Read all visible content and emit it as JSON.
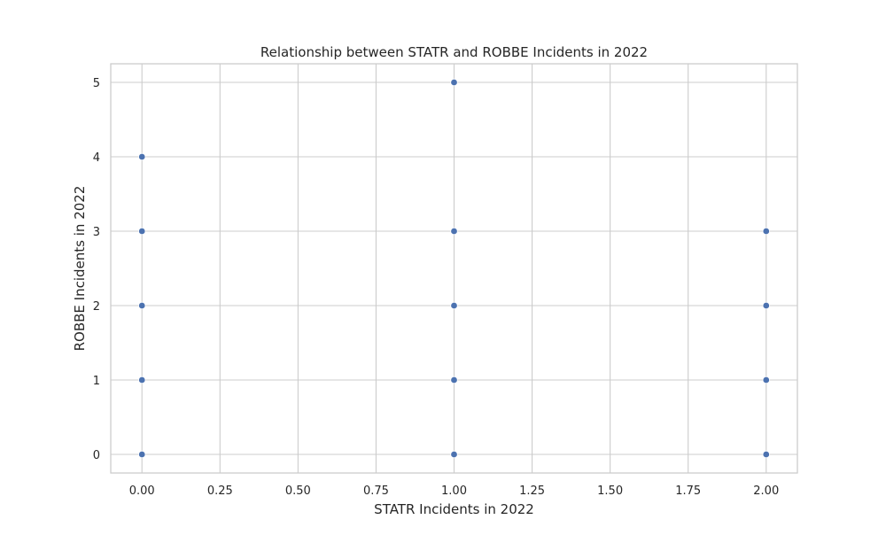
{
  "chart_data": {
    "type": "scatter",
    "title": "Relationship between STATR and ROBBE Incidents in 2022",
    "xlabel": "STATR Incidents in 2022",
    "ylabel": "ROBBE Incidents in 2022",
    "xlim": [
      -0.1,
      2.1
    ],
    "ylim": [
      -0.25,
      5.25
    ],
    "xticks": [
      0.0,
      0.25,
      0.5,
      0.75,
      1.0,
      1.25,
      1.5,
      1.75,
      2.0
    ],
    "xtick_labels": [
      "0.00",
      "0.25",
      "0.50",
      "0.75",
      "1.00",
      "1.25",
      "1.50",
      "1.75",
      "2.00"
    ],
    "yticks": [
      0,
      1,
      2,
      3,
      4,
      5
    ],
    "ytick_labels": [
      "0",
      "1",
      "2",
      "3",
      "4",
      "5"
    ],
    "grid": true,
    "legend": false,
    "point_color": "#4c72b0",
    "points": [
      {
        "x": 0,
        "y": 0
      },
      {
        "x": 0,
        "y": 1
      },
      {
        "x": 0,
        "y": 2
      },
      {
        "x": 0,
        "y": 3
      },
      {
        "x": 0,
        "y": 4
      },
      {
        "x": 1,
        "y": 0
      },
      {
        "x": 1,
        "y": 1
      },
      {
        "x": 1,
        "y": 2
      },
      {
        "x": 1,
        "y": 3
      },
      {
        "x": 1,
        "y": 5
      },
      {
        "x": 2,
        "y": 0
      },
      {
        "x": 2,
        "y": 1
      },
      {
        "x": 2,
        "y": 2
      },
      {
        "x": 2,
        "y": 3
      }
    ]
  }
}
